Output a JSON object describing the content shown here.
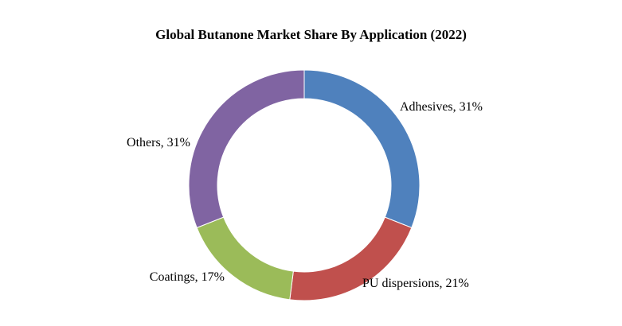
{
  "chart_data": {
    "type": "pie",
    "subtype": "donut",
    "title": "Global Butanone Market Share By Application (2022)",
    "slices": [
      {
        "label": "Adhesives",
        "value": 31,
        "display": "Adhesives,  31%",
        "color": "#4F81BD"
      },
      {
        "label": "PU dispersions",
        "value": 21,
        "display": "PU dispersions, 21%",
        "color": "#C0504D"
      },
      {
        "label": "Coatings",
        "value": 17,
        "display": "Coatings, 17%",
        "color": "#9BBB59"
      },
      {
        "label": "Others",
        "value": 31,
        "display": "Others, 31%",
        "color": "#8064A2"
      }
    ]
  }
}
